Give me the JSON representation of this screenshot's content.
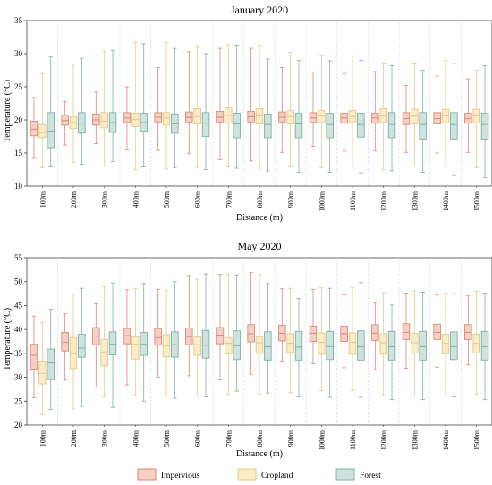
{
  "colors": {
    "impervious_fill": "#f4cfc3",
    "impervious_stroke": "#d98a7a",
    "cropland_fill": "#fbecc6",
    "cropland_stroke": "#e1c98e",
    "forest_fill": "#cfe3de",
    "forest_stroke": "#7fb0a6",
    "divider": "#c9d7ea"
  },
  "chart_data": [
    {
      "type": "box",
      "title": "January  2020",
      "xlabel": "Distance (m)",
      "ylabel": "Temperature (°C)",
      "ylim": [
        10,
        35
      ],
      "yticks": [
        10,
        15,
        20,
        25,
        30,
        35
      ],
      "categories": [
        "100m",
        "200m",
        "300m",
        "400m",
        "500m",
        "600m",
        "700m",
        "800m",
        "900m",
        "1000m",
        "1100m",
        "1200m",
        "1300m",
        "1400m",
        "1500m"
      ],
      "series": [
        {
          "name": "Impervious",
          "stats": [
            [
              14.2,
              17.6,
              18.6,
              19.8,
              23.4
            ],
            [
              16.2,
              19.2,
              19.9,
              20.7,
              22.8
            ],
            [
              16.4,
              19.2,
              20.0,
              20.9,
              24.2
            ],
            [
              15.5,
              19.6,
              20.3,
              21.1,
              25.0
            ],
            [
              15.4,
              19.7,
              20.4,
              21.1,
              27.9
            ],
            [
              14.9,
              19.7,
              20.4,
              21.2,
              30.3
            ],
            [
              14.0,
              19.7,
              20.4,
              21.3,
              30.8
            ],
            [
              13.8,
              19.7,
              20.5,
              21.3,
              30.8
            ],
            [
              15.1,
              19.7,
              20.4,
              21.2,
              27.9
            ],
            [
              16.0,
              19.6,
              20.3,
              21.1,
              27.2
            ],
            [
              15.3,
              19.5,
              20.3,
              21.0,
              27.0
            ],
            [
              15.3,
              19.5,
              20.3,
              21.0,
              27.3
            ],
            [
              15.1,
              19.3,
              20.2,
              21.1,
              25.2
            ],
            [
              15.0,
              19.4,
              20.2,
              21.1,
              26.6
            ],
            [
              15.1,
              19.5,
              20.2,
              21.0,
              26.2
            ]
          ]
        },
        {
          "name": "Cropland",
          "stats": [
            [
              12.8,
              17.3,
              18.1,
              19.3,
              27.0
            ],
            [
              13.6,
              18.7,
              19.6,
              20.5,
              28.4
            ],
            [
              13.0,
              18.8,
              19.8,
              21.1,
              30.4
            ],
            [
              12.5,
              19.0,
              20.1,
              21.0,
              31.7
            ],
            [
              12.6,
              19.2,
              20.3,
              21.1,
              31.7
            ],
            [
              12.8,
              19.4,
              20.5,
              21.7,
              31.2
            ],
            [
              12.9,
              19.5,
              20.7,
              21.8,
              31.4
            ],
            [
              12.7,
              19.4,
              20.6,
              21.7,
              31.3
            ],
            [
              12.9,
              19.4,
              20.5,
              21.4,
              30.2
            ],
            [
              12.8,
              19.6,
              20.6,
              21.4,
              29.7
            ],
            [
              13.0,
              19.7,
              20.5,
              21.4,
              29.8
            ],
            [
              12.5,
              19.6,
              20.6,
              21.7,
              28.6
            ],
            [
              13.0,
              19.4,
              20.6,
              21.6,
              28.6
            ],
            [
              13.0,
              19.6,
              20.6,
              21.6,
              29.0
            ],
            [
              12.8,
              19.5,
              20.6,
              21.6,
              27.5
            ]
          ]
        },
        {
          "name": "Forest",
          "stats": [
            [
              12.9,
              15.8,
              18.3,
              21.1,
              29.5
            ],
            [
              13.3,
              18.0,
              19.5,
              21.1,
              29.3
            ],
            [
              13.7,
              18.1,
              19.6,
              21.1,
              30.5
            ],
            [
              12.9,
              18.3,
              19.6,
              21.0,
              31.5
            ],
            [
              12.8,
              18.0,
              19.4,
              20.9,
              30.8
            ],
            [
              12.5,
              17.5,
              19.5,
              21.1,
              30.0
            ],
            [
              12.7,
              17.3,
              19.4,
              21.0,
              31.3
            ],
            [
              12.3,
              17.3,
              19.3,
              20.9,
              29.2
            ],
            [
              12.1,
              17.3,
              19.4,
              21.0,
              29.0
            ],
            [
              12.1,
              17.3,
              19.3,
              21.0,
              28.9
            ],
            [
              12.0,
              17.4,
              19.3,
              21.0,
              29.0
            ],
            [
              12.3,
              17.3,
              19.3,
              21.1,
              28.2
            ],
            [
              12.1,
              17.1,
              19.3,
              21.1,
              27.5
            ],
            [
              11.6,
              17.1,
              19.3,
              21.1,
              28.5
            ],
            [
              11.3,
              17.1,
              19.3,
              21.0,
              28.2
            ]
          ]
        }
      ]
    },
    {
      "type": "box",
      "title": "May  2020",
      "xlabel": "Distance (m)",
      "ylabel": "Temperature (°C)",
      "ylim": [
        20,
        55
      ],
      "yticks": [
        20,
        25,
        30,
        35,
        40,
        45,
        50,
        55
      ],
      "categories": [
        "100m",
        "200m",
        "300m",
        "400m",
        "500m",
        "600m",
        "700m",
        "800m",
        "900m",
        "1000m",
        "1100m",
        "1200m",
        "1300m",
        "1400m",
        "1500m"
      ],
      "series": [
        {
          "name": "Impervious",
          "stats": [
            [
              25.7,
              31.7,
              34.6,
              36.9,
              42.8
            ],
            [
              29.4,
              35.5,
              37.3,
              39.4,
              43.3
            ],
            [
              27.9,
              36.8,
              38.6,
              40.4,
              45.4
            ],
            [
              28.4,
              37.0,
              38.7,
              40.2,
              48.3
            ],
            [
              30.0,
              36.7,
              38.3,
              40.2,
              48.4
            ],
            [
              30.3,
              36.8,
              38.5,
              40.3,
              51.3
            ],
            [
              29.4,
              37.0,
              38.8,
              40.4,
              51.5
            ],
            [
              30.6,
              37.4,
              39.1,
              41.0,
              51.9
            ],
            [
              33.4,
              37.6,
              39.2,
              40.9,
              48.5
            ],
            [
              32.8,
              37.5,
              39.2,
              40.7,
              48.4
            ],
            [
              32.0,
              37.5,
              39.1,
              40.7,
              47.2
            ],
            [
              31.6,
              37.7,
              39.2,
              41.0,
              45.6
            ],
            [
              31.9,
              37.9,
              39.4,
              41.2,
              47.6
            ],
            [
              32.1,
              37.9,
              39.4,
              41.1,
              47.2
            ],
            [
              32.6,
              37.9,
              39.4,
              41.0,
              47.0
            ]
          ]
        },
        {
          "name": "Cropland",
          "stats": [
            [
              22.2,
              28.6,
              30.8,
              33.4,
              41.4
            ],
            [
              23.4,
              31.8,
              34.9,
              38.3,
              47.4
            ],
            [
              25.9,
              32.4,
              35.3,
              37.9,
              48.9
            ],
            [
              26.2,
              33.8,
              36.9,
              38.5,
              48.5
            ],
            [
              26.0,
              34.3,
              36.6,
              38.9,
              48.2
            ],
            [
              26.1,
              34.6,
              36.8,
              38.4,
              50.5
            ],
            [
              26.4,
              34.9,
              37.1,
              38.3,
              51.5
            ],
            [
              26.5,
              35.0,
              37.2,
              38.5,
              51.4
            ],
            [
              26.8,
              35.2,
              37.1,
              39.1,
              48.6
            ],
            [
              27.2,
              34.8,
              37.3,
              39.3,
              48.7
            ],
            [
              27.2,
              34.8,
              37.3,
              39.3,
              48.7
            ],
            [
              26.2,
              34.9,
              37.2,
              39.1,
              47.7
            ],
            [
              26.1,
              35.1,
              37.2,
              39.2,
              48.1
            ],
            [
              26.1,
              34.9,
              37.1,
              39.0,
              47.6
            ],
            [
              26.5,
              35.1,
              37.1,
              39.0,
              48.0
            ]
          ]
        },
        {
          "name": "Forest",
          "stats": [
            [
              23.3,
              29.5,
              33.0,
              35.9,
              44.2
            ],
            [
              23.9,
              34.2,
              36.1,
              39.0,
              48.6
            ],
            [
              23.7,
              34.7,
              36.9,
              39.5,
              49.7
            ],
            [
              25.0,
              34.6,
              36.9,
              39.4,
              49.6
            ],
            [
              25.6,
              34.2,
              36.8,
              39.5,
              50.0
            ],
            [
              25.9,
              34.0,
              36.7,
              39.8,
              51.6
            ],
            [
              27.1,
              33.7,
              36.6,
              39.7,
              51.4
            ],
            [
              26.7,
              33.6,
              36.4,
              39.5,
              49.6
            ],
            [
              25.9,
              33.6,
              36.3,
              39.6,
              46.5
            ],
            [
              25.8,
              33.7,
              36.4,
              39.6,
              48.6
            ],
            [
              25.8,
              33.6,
              36.4,
              39.7,
              49.8
            ],
            [
              25.3,
              33.6,
              36.4,
              39.6,
              45.1
            ],
            [
              25.3,
              33.6,
              36.4,
              39.6,
              47.8
            ],
            [
              25.9,
              33.7,
              36.4,
              39.5,
              47.5
            ],
            [
              25.3,
              33.6,
              36.4,
              39.6,
              47.6
            ]
          ]
        }
      ]
    }
  ],
  "legend": {
    "placement": "bottom-center",
    "items": [
      "Impervious",
      "Cropland",
      "Forest"
    ]
  }
}
